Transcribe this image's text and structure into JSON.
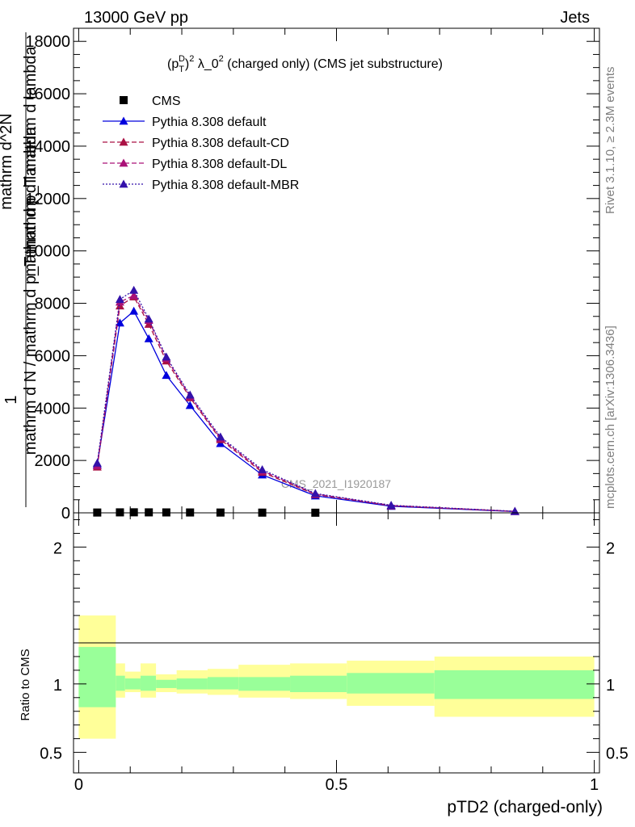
{
  "header": {
    "left": "13000 GeV pp",
    "right": "Jets"
  },
  "side_labels": {
    "rivet": "Rivet 3.1.10, ≥ 2.3M events",
    "mcplots": "mcplots.cern.ch [arXiv:1306.3436]"
  },
  "watermark": "CMS_2021_I1920187",
  "chart_data": [
    {
      "type": "line",
      "title": "(p_T^D)^2 λ_0^2 (charged only) (CMS jet substructure)",
      "title_parts": {
        "p": "(p",
        "sup_d": "D",
        "sub_t": "T",
        "close": ")",
        "sup2": "2",
        "rest": " λ_0",
        "sup2b": "2",
        "tail": " (charged only) (CMS jet substructure)"
      },
      "ylabel_lines": [
        "1",
        "mathrm d N / mathrm d p_T mathrm d lambda",
        "mathrm d^2N",
        "mathrm d p_T mathrm d lambda"
      ],
      "ylim": [
        0,
        18500
      ],
      "xlim": [
        -0.01,
        1.01
      ],
      "yticks": [
        0,
        2000,
        4000,
        6000,
        8000,
        10000,
        12000,
        14000,
        16000,
        18000
      ],
      "ytick_labels": [
        "0",
        "2000",
        "4000",
        "6000",
        "8000",
        "10000",
        "12000",
        "14000",
        "16000",
        "18000"
      ],
      "legend_position": "top-left",
      "series": [
        {
          "name": "CMS",
          "style": "marker",
          "color": "#000000",
          "x": [
            0.036,
            0.08,
            0.107,
            0.136,
            0.17,
            0.216,
            0.275,
            0.356,
            0.459
          ],
          "y": [
            12,
            18,
            20,
            18,
            16,
            14,
            11,
            8,
            5
          ]
        },
        {
          "name": "Pythia 8.308 default",
          "style": "solid",
          "color": "#0000dd",
          "x": [
            0.036,
            0.08,
            0.107,
            0.136,
            0.17,
            0.216,
            0.275,
            0.356,
            0.459,
            0.606,
            0.846
          ],
          "y": [
            1850,
            7250,
            7700,
            6650,
            5250,
            4100,
            2650,
            1450,
            650,
            250,
            50
          ]
        },
        {
          "name": "Pythia 8.308 default-CD",
          "style": "dashed",
          "color": "#aa1144",
          "x": [
            0.036,
            0.08,
            0.107,
            0.136,
            0.17,
            0.216,
            0.275,
            0.356,
            0.459,
            0.606,
            0.846
          ],
          "y": [
            1750,
            7900,
            8250,
            7200,
            5800,
            4400,
            2800,
            1550,
            700,
            270,
            55
          ]
        },
        {
          "name": "Pythia 8.308 default-DL",
          "style": "dashed",
          "color": "#aa1177",
          "x": [
            0.036,
            0.08,
            0.107,
            0.136,
            0.17,
            0.216,
            0.275,
            0.356,
            0.459,
            0.606,
            0.846
          ],
          "y": [
            1800,
            8050,
            8300,
            7350,
            5900,
            4450,
            2850,
            1600,
            720,
            280,
            55
          ]
        },
        {
          "name": "Pythia 8.308 default-MBR",
          "style": "dotted",
          "color": "#3311aa",
          "x": [
            0.036,
            0.08,
            0.107,
            0.136,
            0.17,
            0.216,
            0.275,
            0.356,
            0.459,
            0.606,
            0.846
          ],
          "y": [
            1900,
            8150,
            8500,
            7400,
            5950,
            4500,
            2900,
            1650,
            740,
            290,
            60
          ]
        }
      ]
    },
    {
      "type": "area",
      "ylabel": "Ratio to CMS",
      "xlabel": "pTD2 (charged-only)",
      "xlim": [
        -0.01,
        1.01
      ],
      "ylim": [
        0.35,
        2.25
      ],
      "xticks": [
        0,
        0.5,
        1
      ],
      "xtick_labels": [
        "0",
        "0.5",
        "1"
      ],
      "yticks": [
        0.5,
        1,
        2
      ],
      "ytick_labels": [
        "0.5",
        "1",
        "2"
      ],
      "bins": [
        {
          "x0": 0.0,
          "x1": 0.072,
          "inner": [
            0.83,
            1.27
          ],
          "outer": [
            0.6,
            1.5
          ]
        },
        {
          "x0": 0.072,
          "x1": 0.09,
          "inner": [
            0.95,
            1.06
          ],
          "outer": [
            0.9,
            1.15
          ]
        },
        {
          "x0": 0.09,
          "x1": 0.12,
          "inner": [
            0.96,
            1.04
          ],
          "outer": [
            0.94,
            1.09
          ]
        },
        {
          "x0": 0.12,
          "x1": 0.15,
          "inner": [
            0.95,
            1.06
          ],
          "outer": [
            0.9,
            1.15
          ]
        },
        {
          "x0": 0.15,
          "x1": 0.19,
          "inner": [
            0.97,
            1.03
          ],
          "outer": [
            0.94,
            1.07
          ]
        },
        {
          "x0": 0.19,
          "x1": 0.25,
          "inner": [
            0.96,
            1.04
          ],
          "outer": [
            0.93,
            1.1
          ]
        },
        {
          "x0": 0.25,
          "x1": 0.31,
          "inner": [
            0.96,
            1.05
          ],
          "outer": [
            0.92,
            1.11
          ]
        },
        {
          "x0": 0.31,
          "x1": 0.41,
          "inner": [
            0.95,
            1.05
          ],
          "outer": [
            0.9,
            1.14
          ]
        },
        {
          "x0": 0.41,
          "x1": 0.52,
          "inner": [
            0.94,
            1.06
          ],
          "outer": [
            0.89,
            1.15
          ]
        },
        {
          "x0": 0.52,
          "x1": 0.69,
          "inner": [
            0.93,
            1.08
          ],
          "outer": [
            0.84,
            1.17
          ]
        },
        {
          "x0": 0.69,
          "x1": 1.0,
          "inner": [
            0.89,
            1.1
          ],
          "outer": [
            0.76,
            1.2
          ]
        }
      ],
      "colors": {
        "inner": "#99ff99",
        "outer": "#ffff99"
      }
    }
  ]
}
